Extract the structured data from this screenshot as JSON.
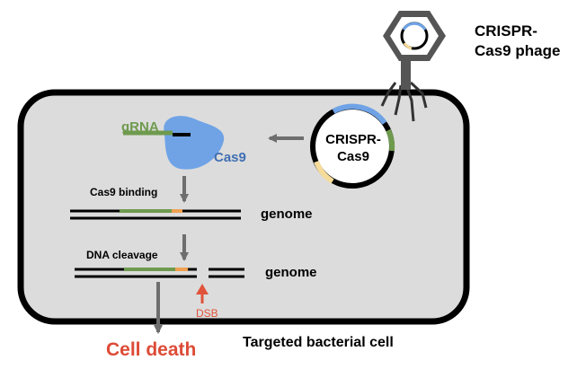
{
  "phage": {
    "line1": "CRISPR-",
    "line2": "Cas9 phage"
  },
  "plasmid": {
    "line1": "CRISPR-",
    "line2": "Cas9"
  },
  "grna_label": "gRNA",
  "cas9_label": "Cas9",
  "step1": {
    "label": "Cas9 binding",
    "genome_label": "genome"
  },
  "step2": {
    "label": "DNA cleavage",
    "genome_label": "genome",
    "dsb_label": "DSB"
  },
  "cell_label": "Targeted bacterial cell",
  "outcome_label": "Cell death",
  "colors": {
    "cell_fill": "#dcdcdc",
    "outline": "#000000",
    "arrow": "#6e6e6e",
    "grna": "#6e9a4e",
    "cas9": "#6fa3e6",
    "target": "#f0a050",
    "dsb": "#e0533a",
    "phage_body": "#555555",
    "cell_death": "#dd4b37"
  }
}
